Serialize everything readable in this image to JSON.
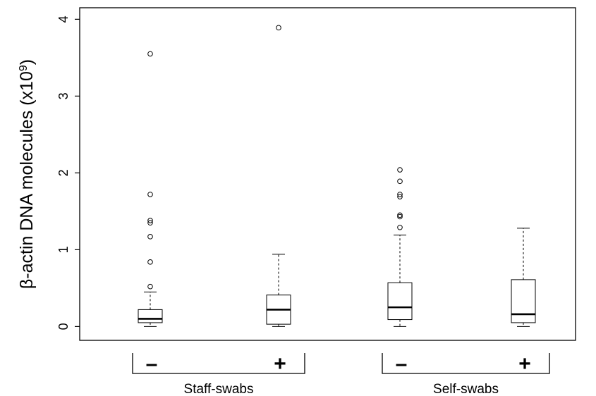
{
  "chart_data": {
    "type": "boxplot",
    "title": "",
    "ylabel": "β-actin DNA molecules (x10",
    "ylabel_sup": "9",
    "ylabel_close": ")",
    "ylim": [
      -0.18,
      4.15
    ],
    "yticks": [
      "0",
      "1",
      "2",
      "3",
      "4"
    ],
    "grid": false,
    "legend": "none",
    "categories": [
      "–",
      "+",
      "–",
      "+"
    ],
    "groups": [
      {
        "label": "Staff-swabs",
        "members": [
          0,
          1
        ]
      },
      {
        "label": "Self-swabs",
        "members": [
          2,
          3
        ]
      }
    ],
    "boxes": [
      {
        "category": "–",
        "whisker_low": 0.0,
        "q1": 0.05,
        "median": 0.1,
        "q3": 0.22,
        "whisker_high": 0.45,
        "outliers": [
          0.52,
          0.84,
          1.17,
          1.35,
          1.38,
          1.72,
          3.55
        ]
      },
      {
        "category": "+",
        "whisker_low": 0.0,
        "q1": 0.03,
        "median": 0.22,
        "q3": 0.41,
        "whisker_high": 0.94,
        "outliers": [
          3.89
        ]
      },
      {
        "category": "–",
        "whisker_low": 0.0,
        "q1": 0.09,
        "median": 0.25,
        "q3": 0.57,
        "whisker_high": 1.19,
        "outliers": [
          1.29,
          1.43,
          1.45,
          1.69,
          1.72,
          1.89,
          2.04
        ]
      },
      {
        "category": "+",
        "whisker_low": 0.0,
        "q1": 0.05,
        "median": 0.16,
        "q3": 0.61,
        "whisker_high": 1.28,
        "outliers": []
      }
    ]
  }
}
